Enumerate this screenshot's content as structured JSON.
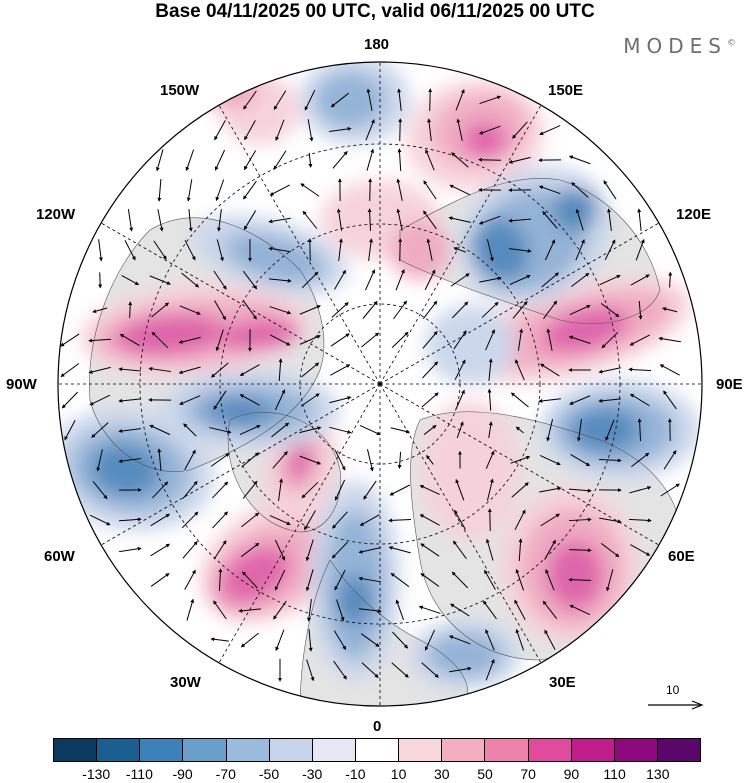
{
  "header": {
    "title": "Base 04/11/2025 00 UTC, valid 06/11/2025 00 UTC",
    "brand": "MODES",
    "brand_mark": "©"
  },
  "map": {
    "longitude_labels": {
      "top": "180",
      "top_left": "150W",
      "top_right": "150E",
      "upper_left": "120W",
      "upper_right": "120E",
      "left": "90W",
      "right": "90E",
      "lower_left": "60W",
      "lower_right": "60E",
      "bottom_left": "30W",
      "bottom_right": "30E",
      "bottom": "0"
    },
    "vector_scale_label": "10"
  },
  "colorbar": {
    "labels": [
      "-130",
      "-110",
      "-90",
      "-70",
      "-50",
      "-30",
      "-10",
      "10",
      "30",
      "50",
      "70",
      "90",
      "110",
      "130"
    ],
    "colors": [
      "#0b3a5e",
      "#1a5f8f",
      "#3c82b8",
      "#6a9fcc",
      "#9bbbdc",
      "#c6d3e8",
      "#e6e8f3",
      "#ffffff",
      "#f8d8dc",
      "#f3aebf",
      "#ee82ad",
      "#e04b9d",
      "#c11c8b",
      "#8c0a7d",
      "#5a066b"
    ]
  },
  "palette": {
    "neg_strong": "#4f86bb",
    "neg_mid": "#8fb0d6",
    "neg_weak": "#c9d5ea",
    "pos_weak": "#f6d1da",
    "pos_mid": "#f0a8c0",
    "pos_strong": "#de5ea8",
    "land": "#e4e4e4"
  }
}
